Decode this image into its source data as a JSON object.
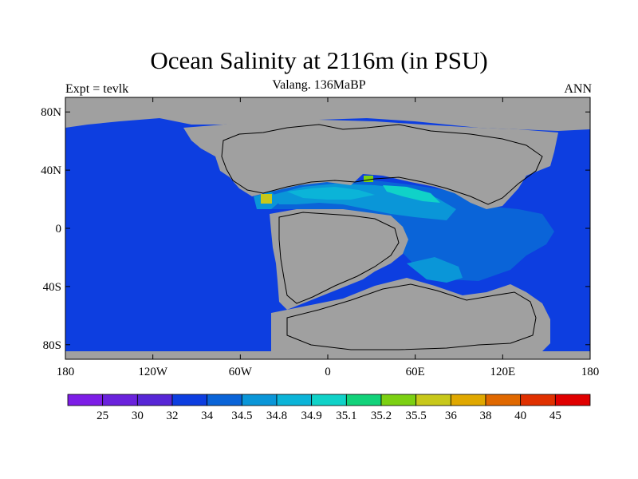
{
  "header": {
    "title": "Ocean Salinity at 2116m (in PSU)",
    "subtitle": "Valang. 136MaBP",
    "left_label": "Expt = tevlk",
    "right_label": "ANN"
  },
  "map": {
    "x_ticks": [
      "180",
      "120W",
      "60W",
      "0",
      "60E",
      "120E",
      "180"
    ],
    "x_tick_values": [
      -180,
      -120,
      -60,
      0,
      60,
      120,
      180
    ],
    "y_ticks": [
      "80N",
      "40N",
      "0",
      "40S",
      "80S"
    ],
    "y_tick_values": [
      80,
      40,
      0,
      -40,
      -80
    ],
    "lon_range": [
      -180,
      180
    ],
    "lat_range": [
      -90,
      90
    ],
    "land_color": "#a0a0a0",
    "ocean_base_color": "#0d3ee0"
  },
  "colorbar": {
    "labels": [
      "25",
      "30",
      "32",
      "34",
      "34.5",
      "34.8",
      "34.9",
      "35.1",
      "35.2",
      "35.5",
      "36",
      "38",
      "40",
      "45"
    ],
    "colors": [
      "#7d1de6",
      "#6a22dc",
      "#5726d6",
      "#0d3ee0",
      "#0a64d8",
      "#0a96d8",
      "#0bb4d8",
      "#10d2c8",
      "#12d27a",
      "#7cd012",
      "#c8c81a",
      "#e0a800",
      "#e06800",
      "#e03000",
      "#e00000"
    ]
  }
}
